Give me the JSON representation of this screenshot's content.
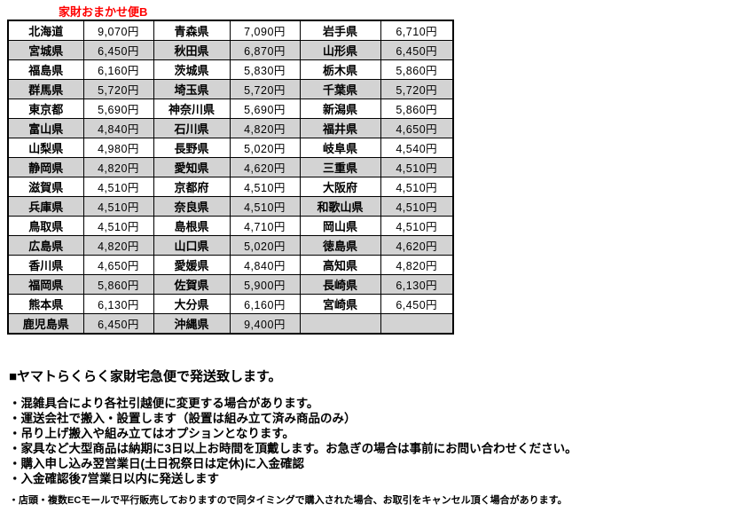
{
  "title": "家財おまかせ便B",
  "accent_colors": {
    "title_red": "#ff0000",
    "row_shade_gray": "#d3d3d3",
    "border_black": "#000000"
  },
  "shipping_table": {
    "columns": [
      "prefecture",
      "price",
      "prefecture",
      "price",
      "prefecture",
      "price"
    ],
    "rows": [
      [
        "北海道",
        "9,070円",
        "青森県",
        "7,090円",
        "岩手県",
        "6,710円"
      ],
      [
        "宮城県",
        "6,450円",
        "秋田県",
        "6,870円",
        "山形県",
        "6,450円"
      ],
      [
        "福島県",
        "6,160円",
        "茨城県",
        "5,830円",
        "栃木県",
        "5,860円"
      ],
      [
        "群馬県",
        "5,720円",
        "埼玉県",
        "5,720円",
        "千葉県",
        "5,720円"
      ],
      [
        "東京都",
        "5,690円",
        "神奈川県",
        "5,690円",
        "新潟県",
        "5,860円"
      ],
      [
        "富山県",
        "4,840円",
        "石川県",
        "4,820円",
        "福井県",
        "4,650円"
      ],
      [
        "山梨県",
        "4,980円",
        "長野県",
        "5,020円",
        "岐阜県",
        "4,540円"
      ],
      [
        "静岡県",
        "4,820円",
        "愛知県",
        "4,620円",
        "三重県",
        "4,510円"
      ],
      [
        "滋賀県",
        "4,510円",
        "京都府",
        "4,510円",
        "大阪府",
        "4,510円"
      ],
      [
        "兵庫県",
        "4,510円",
        "奈良県",
        "4,510円",
        "和歌山県",
        "4,510円"
      ],
      [
        "鳥取県",
        "4,510円",
        "島根県",
        "4,710円",
        "岡山県",
        "4,510円"
      ],
      [
        "広島県",
        "4,820円",
        "山口県",
        "5,020円",
        "徳島県",
        "4,620円"
      ],
      [
        "香川県",
        "4,650円",
        "愛媛県",
        "4,840円",
        "高知県",
        "4,820円"
      ],
      [
        "福岡県",
        "5,860円",
        "佐賀県",
        "5,900円",
        "長崎県",
        "6,130円"
      ],
      [
        "熊本県",
        "6,130円",
        "大分県",
        "6,160円",
        "宮崎県",
        "6,450円"
      ],
      [
        "鹿児島県",
        "6,450円",
        "沖縄県",
        "9,400円",
        "",
        ""
      ]
    ]
  },
  "notes": {
    "heading": "■ヤマトらくらく家財宅急便で発送致します。",
    "bullets": [
      "・混雑具合により各社引越便に変更する場合があります。",
      "・運送会社で搬入・設置します（設置は組み立て済み商品のみ）",
      "・吊り上げ搬入や組み立てはオプションとなります。",
      "・家具など大型商品は納期に3日以上お時間を頂戴します。お急ぎの場合は事前にお問い合わせください。",
      "・購入申し込み翌営業日(土日祝祭日は定休)に入金確認",
      "・入金確認後7営業日以内に発送します"
    ],
    "footnote": "・店頭・複数ECモールで平行販売しておりますので同タイミングで購入された場合、お取引をキャンセル頂く場合があります。"
  }
}
